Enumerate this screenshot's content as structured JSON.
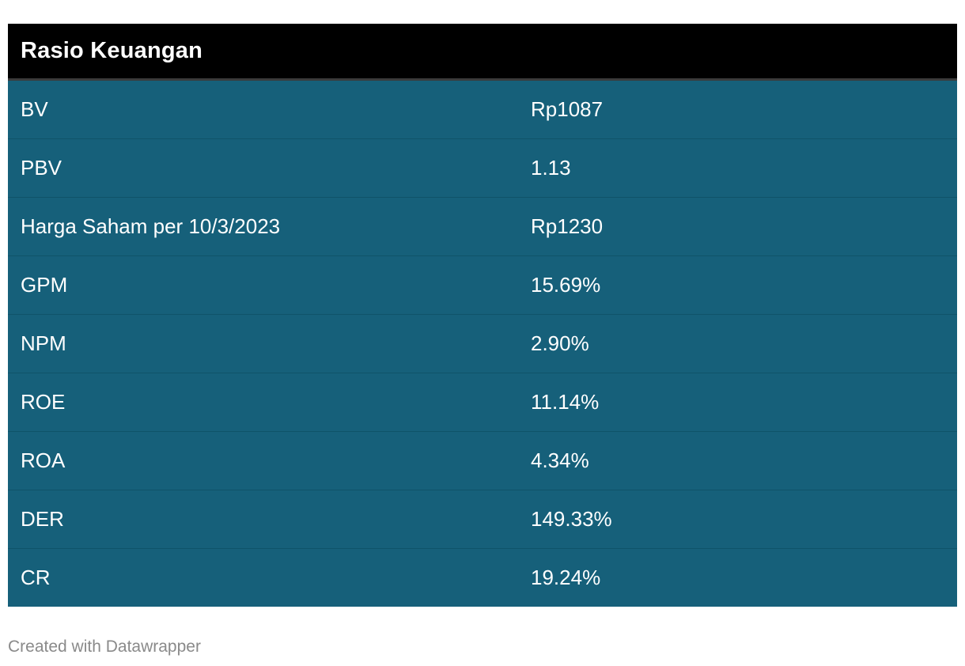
{
  "table": {
    "title": "Rasio Keuangan",
    "rows": [
      {
        "label": "BV",
        "value": "Rp1087"
      },
      {
        "label": "PBV",
        "value": "1.13"
      },
      {
        "label": "Harga Saham per 10/3/2023",
        "value": "Rp1230"
      },
      {
        "label": "GPM",
        "value": "15.69%"
      },
      {
        "label": "NPM",
        "value": "2.90%"
      },
      {
        "label": "ROE",
        "value": "11.14%"
      },
      {
        "label": "ROA",
        "value": "4.34%"
      },
      {
        "label": "DER",
        "value": "149.33%"
      },
      {
        "label": "CR",
        "value": "19.24%"
      }
    ]
  },
  "footer": {
    "credit": "Created with Datawrapper"
  },
  "colors": {
    "header_bg": "#000000",
    "row_bg": "#16607a",
    "text": "#ffffff",
    "footer_text": "#8a8a8a"
  },
  "chart_data": {
    "type": "table",
    "title": "Rasio Keuangan",
    "columns": [
      "Rasio Keuangan",
      ""
    ],
    "rows": [
      [
        "BV",
        "Rp1087"
      ],
      [
        "PBV",
        "1.13"
      ],
      [
        "Harga Saham per 10/3/2023",
        "Rp1230"
      ],
      [
        "GPM",
        "15.69%"
      ],
      [
        "NPM",
        "2.90%"
      ],
      [
        "ROE",
        "11.14%"
      ],
      [
        "ROA",
        "4.34%"
      ],
      [
        "DER",
        "149.33%"
      ],
      [
        "CR",
        "19.24%"
      ]
    ]
  }
}
